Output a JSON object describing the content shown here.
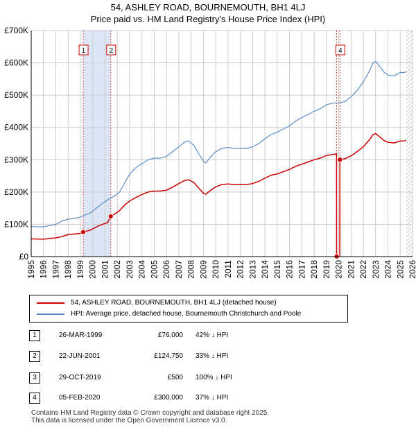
{
  "title_line1": "54, ASHLEY ROAD, BOURNEMOUTH, BH1 4LJ",
  "title_line2": "Price paid vs. HM Land Registry's House Price Index (HPI)",
  "colors": {
    "property": "#cc0000",
    "hpi": "#5b8ec8",
    "band": "#dde6f6",
    "grid": "#cccccc",
    "marker_line": "#dd4444"
  },
  "legend": {
    "property_label": "54, ASHLEY ROAD, BOURNEMOUTH, BH1 4LJ (detached house)",
    "hpi_label": "HPI: Average price, detached house, Bournemouth Christchurch and Poole"
  },
  "sales": [
    {
      "marker": "1",
      "date": "26-MAR-1999",
      "price": "£76,000",
      "hpi_delta": "42% ↓ HPI"
    },
    {
      "marker": "2",
      "date": "22-JUN-2001",
      "price": "£124,750",
      "hpi_delta": "33% ↓ HPI"
    },
    {
      "marker": "3",
      "date": "29-OCT-2019",
      "price": "£500",
      "hpi_delta": "100% ↓ HPI"
    },
    {
      "marker": "4",
      "date": "05-FEB-2020",
      "price": "£300,000",
      "hpi_delta": "37% ↓ HPI"
    }
  ],
  "footer_line1": "Contains HM Land Registry data © Crown copyright and database right 2025.",
  "footer_line2": "This data is licensed under the Open Government Licence v3.0.",
  "chart_data": {
    "type": "line",
    "title": "Price paid vs. HM Land Registry's House Price Index (HPI)",
    "xlabel": "",
    "ylabel": "",
    "xlim": [
      1995,
      2026
    ],
    "ylim": [
      0,
      700000
    ],
    "x_ticks": [
      "1995",
      "1996",
      "1997",
      "1998",
      "1999",
      "2000",
      "2001",
      "2002",
      "2003",
      "2004",
      "2005",
      "2006",
      "2007",
      "2008",
      "2009",
      "2010",
      "2011",
      "2012",
      "2013",
      "2014",
      "2015",
      "2016",
      "2017",
      "2018",
      "2019",
      "2020",
      "2021",
      "2022",
      "2023",
      "2024",
      "2025",
      "2026"
    ],
    "y_ticks": [
      {
        "value": 0,
        "label": "£0"
      },
      {
        "value": 100000,
        "label": "£100K"
      },
      {
        "value": 200000,
        "label": "£200K"
      },
      {
        "value": 300000,
        "label": "£300K"
      },
      {
        "value": 400000,
        "label": "£400K"
      },
      {
        "value": 500000,
        "label": "£500K"
      },
      {
        "value": 600000,
        "label": "£600K"
      },
      {
        "value": 700000,
        "label": "£700K"
      }
    ],
    "shaded_span": [
      1999.23,
      2001.47
    ],
    "hatch_from": 2025.5,
    "series": [
      {
        "name": "HPI: Average price, detached house, Bournemouth Christchurch and Poole",
        "points": [
          [
            1995.0,
            93000
          ],
          [
            1996.0,
            92000
          ],
          [
            1996.5,
            96000
          ],
          [
            1997.0,
            100000
          ],
          [
            1997.5,
            110000
          ],
          [
            1998.0,
            116000
          ],
          [
            1998.5,
            118000
          ],
          [
            1999.0,
            122000
          ],
          [
            1999.3,
            128000
          ],
          [
            1999.8,
            135000
          ],
          [
            2000.3,
            150000
          ],
          [
            2000.8,
            165000
          ],
          [
            2001.3,
            178000
          ],
          [
            2001.8,
            188000
          ],
          [
            2002.2,
            200000
          ],
          [
            2002.6,
            228000
          ],
          [
            2003.0,
            255000
          ],
          [
            2003.5,
            275000
          ],
          [
            2004.0,
            288000
          ],
          [
            2004.5,
            300000
          ],
          [
            2005.0,
            305000
          ],
          [
            2005.5,
            305000
          ],
          [
            2006.0,
            310000
          ],
          [
            2006.5,
            325000
          ],
          [
            2007.0,
            340000
          ],
          [
            2007.5,
            355000
          ],
          [
            2007.8,
            358000
          ],
          [
            2008.2,
            345000
          ],
          [
            2008.6,
            320000
          ],
          [
            2009.0,
            295000
          ],
          [
            2009.2,
            290000
          ],
          [
            2009.5,
            305000
          ],
          [
            2010.0,
            325000
          ],
          [
            2010.5,
            335000
          ],
          [
            2011.0,
            338000
          ],
          [
            2011.5,
            335000
          ],
          [
            2012.0,
            335000
          ],
          [
            2012.5,
            335000
          ],
          [
            2013.0,
            340000
          ],
          [
            2013.5,
            350000
          ],
          [
            2014.0,
            365000
          ],
          [
            2014.5,
            378000
          ],
          [
            2015.0,
            385000
          ],
          [
            2015.5,
            395000
          ],
          [
            2016.0,
            405000
          ],
          [
            2016.5,
            420000
          ],
          [
            2017.0,
            430000
          ],
          [
            2017.5,
            440000
          ],
          [
            2018.0,
            450000
          ],
          [
            2018.5,
            458000
          ],
          [
            2019.0,
            470000
          ],
          [
            2019.5,
            475000
          ],
          [
            2020.0,
            476000
          ],
          [
            2020.5,
            480000
          ],
          [
            2021.0,
            495000
          ],
          [
            2021.5,
            515000
          ],
          [
            2022.0,
            540000
          ],
          [
            2022.5,
            575000
          ],
          [
            2022.8,
            600000
          ],
          [
            2023.0,
            605000
          ],
          [
            2023.3,
            590000
          ],
          [
            2023.7,
            570000
          ],
          [
            2024.0,
            562000
          ],
          [
            2024.5,
            560000
          ],
          [
            2025.0,
            570000
          ],
          [
            2025.3,
            570000
          ],
          [
            2025.5,
            572000
          ]
        ]
      },
      {
        "name": "54, ASHLEY ROAD, BOURNEMOUTH, BH1 4LJ (detached house)",
        "points": [
          [
            1995.0,
            55000
          ],
          [
            1996.0,
            54000
          ],
          [
            1996.5,
            56000
          ],
          [
            1997.0,
            58000
          ],
          [
            1997.5,
            62000
          ],
          [
            1998.0,
            68000
          ],
          [
            1998.5,
            70000
          ],
          [
            1999.0,
            72000
          ],
          [
            1999.23,
            76000
          ],
          [
            1999.8,
            82000
          ],
          [
            2000.3,
            92000
          ],
          [
            2000.8,
            100000
          ],
          [
            2001.2,
            105000
          ],
          [
            2001.47,
            124750
          ],
          [
            2001.8,
            132000
          ],
          [
            2002.2,
            143000
          ],
          [
            2002.6,
            160000
          ],
          [
            2003.0,
            172000
          ],
          [
            2003.5,
            183000
          ],
          [
            2004.0,
            192000
          ],
          [
            2004.5,
            200000
          ],
          [
            2005.0,
            203000
          ],
          [
            2005.5,
            203000
          ],
          [
            2006.0,
            206000
          ],
          [
            2006.5,
            215000
          ],
          [
            2007.0,
            226000
          ],
          [
            2007.5,
            236000
          ],
          [
            2007.8,
            238000
          ],
          [
            2008.2,
            230000
          ],
          [
            2008.6,
            213000
          ],
          [
            2009.0,
            196000
          ],
          [
            2009.2,
            193000
          ],
          [
            2009.5,
            203000
          ],
          [
            2010.0,
            216000
          ],
          [
            2010.5,
            223000
          ],
          [
            2011.0,
            225000
          ],
          [
            2011.5,
            223000
          ],
          [
            2012.0,
            223000
          ],
          [
            2012.5,
            223000
          ],
          [
            2013.0,
            226000
          ],
          [
            2013.5,
            233000
          ],
          [
            2014.0,
            243000
          ],
          [
            2014.5,
            252000
          ],
          [
            2015.0,
            256000
          ],
          [
            2015.5,
            263000
          ],
          [
            2016.0,
            270000
          ],
          [
            2016.5,
            280000
          ],
          [
            2017.0,
            286000
          ],
          [
            2017.5,
            293000
          ],
          [
            2018.0,
            300000
          ],
          [
            2018.5,
            305000
          ],
          [
            2019.0,
            313000
          ],
          [
            2019.5,
            316000
          ],
          [
            2019.82,
            318000
          ],
          [
            2019.83,
            500
          ],
          [
            2020.09,
            500
          ],
          [
            2020.1,
            300000
          ],
          [
            2020.5,
            303000
          ],
          [
            2021.0,
            312000
          ],
          [
            2021.5,
            325000
          ],
          [
            2022.0,
            340000
          ],
          [
            2022.5,
            362000
          ],
          [
            2022.8,
            378000
          ],
          [
            2023.0,
            381000
          ],
          [
            2023.3,
            372000
          ],
          [
            2023.7,
            359000
          ],
          [
            2024.0,
            354000
          ],
          [
            2024.5,
            352000
          ],
          [
            2025.0,
            358000
          ],
          [
            2025.3,
            358000
          ],
          [
            2025.5,
            360000
          ]
        ]
      }
    ],
    "markers": [
      {
        "label": "1",
        "x": 1999.23,
        "y": 76000
      },
      {
        "label": "2",
        "x": 2001.47,
        "y": 124750
      },
      {
        "label": "3",
        "x": 2019.83,
        "y": 500
      },
      {
        "label": "4",
        "x": 2020.1,
        "y": 300000
      }
    ]
  }
}
